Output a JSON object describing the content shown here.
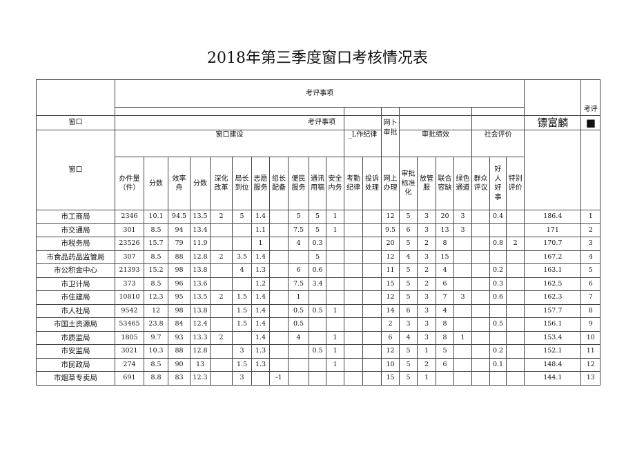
{
  "title": "2018年第三季度窗口考核情况表",
  "header": {
    "eval_items": "考评事项",
    "eval_short": "考评",
    "window": "窗口",
    "eval_items2": "考评事项",
    "offline": "网卜审批",
    "name_mark": "镖富麟",
    "square": "■",
    "groups": [
      "窗口建设",
      "_L作纪律",
      "审批绩效",
      "社会评价"
    ],
    "columns": [
      "办件量（件）",
      "分数",
      "效率舟",
      "分数",
      "深化改革",
      "局长到位",
      "志愿服务",
      "组长配备",
      "便民服务",
      "通讯用稿",
      "安全内务",
      "考勤纪律",
      "投诉处理",
      "网上办理",
      "审批标准化",
      "放管服",
      "联合容缺",
      "绿色通道",
      "群众评议",
      "好人好事",
      "特别评价"
    ]
  },
  "rows": [
    [
      "市工商局",
      "2346",
      "10.1",
      "94.5",
      "13.5",
      "2",
      "5",
      "1.4",
      "",
      "5",
      "5",
      "1",
      "",
      "",
      "12",
      "5",
      "3",
      "20",
      "3",
      "",
      "0.4",
      "",
      "186.4",
      "1"
    ],
    [
      "市交通局",
      "301",
      "8.5",
      "94",
      "13.4",
      "",
      "",
      "1.1",
      "",
      "7.5",
      "5",
      "1",
      "",
      "",
      "9.5",
      "6",
      "3",
      "13",
      "3",
      "",
      "",
      "",
      "171",
      "2"
    ],
    [
      "市税务局",
      "23526",
      "15.7",
      "79",
      "11.9",
      "",
      "",
      "1",
      "",
      "4",
      "0.3",
      "",
      "",
      "",
      "20",
      "5",
      "2",
      "8",
      "",
      "",
      "0.8",
      "2",
      "170.7",
      "3"
    ],
    [
      "市食品药品监管局",
      "307",
      "8.5",
      "88",
      "12.8",
      "2",
      "3.5",
      "1.4",
      "",
      "",
      "5",
      "",
      "",
      "",
      "12",
      "4",
      "3",
      "15",
      "",
      "",
      "",
      "",
      "167.2",
      "4"
    ],
    [
      "市公积金中心",
      "21393",
      "15.2",
      "98",
      "13.8",
      "",
      "4",
      "1.3",
      "",
      "6",
      "0.6",
      "",
      "",
      "",
      "11",
      "5",
      "2",
      "4",
      "",
      "",
      "0.2",
      "",
      "163.1",
      "5"
    ],
    [
      "市卫计局",
      "373",
      "8.5",
      "96",
      "13.6",
      "",
      "",
      "1.2",
      "",
      "7.5",
      "3.4",
      "",
      "",
      "",
      "15",
      "5",
      "2",
      "6",
      "",
      "",
      "0.3",
      "",
      "162.5",
      "6"
    ],
    [
      "市住建局",
      "10810",
      "12.3",
      "95",
      "13.5",
      "2",
      "1.5",
      "1.4",
      "",
      "1",
      "",
      "",
      "",
      "",
      "12",
      "5",
      "3",
      "7",
      "3",
      "",
      "0.6",
      "",
      "162.3",
      "7"
    ],
    [
      "市人社局",
      "9542",
      "12",
      "98",
      "13.8",
      "",
      "1.5",
      "1.4",
      "",
      "0.5",
      "0.5",
      "1",
      "",
      "",
      "14",
      "6",
      "3",
      "4",
      "",
      "",
      "",
      "",
      "157.7",
      "8"
    ],
    [
      "市国土资源局",
      "53465",
      "23.8",
      "84",
      "12.4",
      "",
      "1.5",
      "1.4",
      "",
      "0.5",
      "",
      "",
      "",
      "",
      "2",
      "3",
      "3",
      "8",
      "",
      "",
      "0.5",
      "",
      "156.1",
      "9"
    ],
    [
      "市质监局",
      "1805",
      "9.7",
      "93",
      "13.3",
      "2",
      "",
      "1.4",
      "",
      "4",
      "",
      "1",
      "",
      "",
      "6",
      "4",
      "3",
      "8",
      "1",
      "",
      "",
      "",
      "153.4",
      "10"
    ],
    [
      "市安监局",
      "3021",
      "10.3",
      "88",
      "12.8",
      "",
      "3",
      "1.3",
      "",
      "",
      "0.5",
      "1",
      "",
      "",
      "12",
      "5",
      "1",
      "5",
      "",
      "",
      "0.2",
      "",
      "152.1",
      "11"
    ],
    [
      "市民政局",
      "274",
      "8.5",
      "90",
      "13",
      "",
      "1.5",
      "1.3",
      "",
      "",
      "",
      "1",
      "",
      "",
      "10",
      "5",
      "2",
      "6",
      "",
      "",
      "0.1",
      "",
      "148.4",
      "12"
    ],
    [
      "市烟草专卖局",
      "691",
      "8.8",
      "83",
      "12.3",
      "",
      "3",
      "",
      "-1",
      "",
      "",
      "",
      "",
      "",
      "15",
      "5",
      "1",
      "",
      "",
      "",
      "",
      "",
      "144.1",
      "13"
    ]
  ]
}
